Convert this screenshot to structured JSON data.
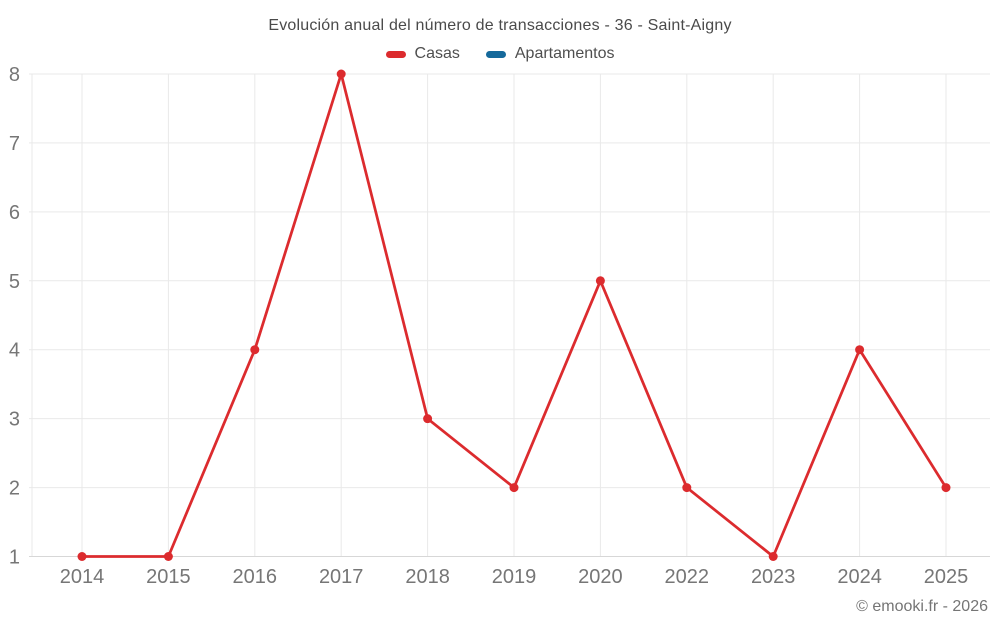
{
  "title": "Evolución anual del número de transacciones - 36 - Saint-Aigny",
  "watermark": "© emooki.fr - 2026",
  "colors": {
    "casas": "#dc2b2e",
    "apartamentos": "#15699b",
    "grid": "#e9e9e9",
    "axis": "#d7d7d7",
    "tick_text": "#767676",
    "title_text": "#4a4a4a",
    "legend_text": "#4f4f4f",
    "background": "#ffffff"
  },
  "chart_data": {
    "type": "line",
    "title": "Evolución anual del número de transacciones - 36 - Saint-Aigny",
    "categories": [
      "2014",
      "2015",
      "2016",
      "2017",
      "2018",
      "2019",
      "2020",
      "2022",
      "2023",
      "2024",
      "2025"
    ],
    "series": [
      {
        "name": "Casas",
        "color": "#dc2b2e",
        "values": [
          1,
          1,
          4,
          8,
          3,
          2,
          5,
          2,
          1,
          4,
          2
        ]
      },
      {
        "name": "Apartamentos",
        "color": "#15699b",
        "values": []
      }
    ],
    "xlabel": "",
    "ylabel": "",
    "ylim": [
      1,
      8
    ],
    "yticks": [
      1,
      2,
      3,
      4,
      5,
      6,
      7,
      8
    ],
    "grid": true,
    "legend_position": "top",
    "marker": "circle"
  }
}
